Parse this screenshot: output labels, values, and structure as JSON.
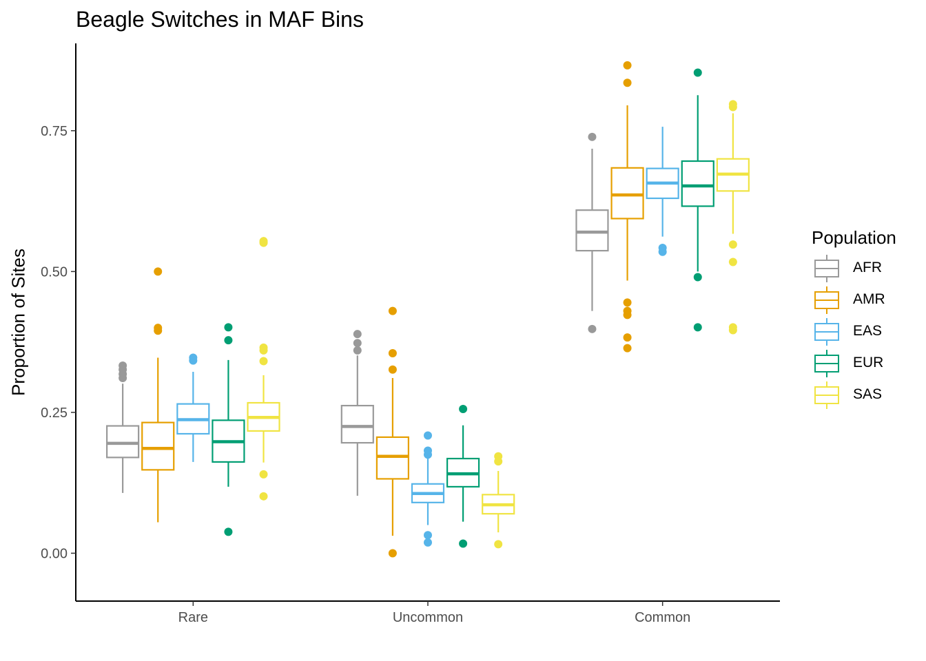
{
  "chart_data": {
    "type": "boxplot",
    "title": "Beagle Switches in MAF Bins",
    "xlabel": "",
    "ylabel": "Proportion of Sites",
    "ylim": [
      -0.085,
      0.905
    ],
    "yticks": [
      "0.00",
      "0.25",
      "0.50",
      "0.75"
    ],
    "ytick_values": [
      0,
      0.25,
      0.5,
      0.75
    ],
    "categories": [
      "Rare",
      "Uncommon",
      "Common"
    ],
    "legend_title": "Population",
    "legend_position": "right",
    "grid": false,
    "series": [
      {
        "name": "AFR",
        "color": "#999999",
        "boxes": [
          {
            "min": 0.107,
            "q1": 0.17,
            "median": 0.195,
            "q3": 0.226,
            "max": 0.301,
            "outliers": [
              0.311,
              0.318,
              0.326,
              0.333
            ]
          },
          {
            "min": 0.102,
            "q1": 0.196,
            "median": 0.225,
            "q3": 0.262,
            "max": 0.351,
            "outliers": [
              0.36,
              0.373,
              0.389
            ]
          },
          {
            "min": 0.43,
            "q1": 0.537,
            "median": 0.57,
            "q3": 0.609,
            "max": 0.718,
            "outliers": [
              0.398,
              0.739
            ]
          }
        ]
      },
      {
        "name": "AMR",
        "color": "#E69F00",
        "boxes": [
          {
            "min": 0.055,
            "q1": 0.148,
            "median": 0.186,
            "q3": 0.232,
            "max": 0.347,
            "outliers": [
              0.395,
              0.4,
              0.5
            ]
          },
          {
            "min": 0.031,
            "q1": 0.132,
            "median": 0.172,
            "q3": 0.206,
            "max": 0.311,
            "outliers": [
              0.0,
              0.326,
              0.355,
              0.43
            ]
          },
          {
            "min": 0.484,
            "q1": 0.594,
            "median": 0.636,
            "q3": 0.684,
            "max": 0.795,
            "outliers": [
              0.364,
              0.383,
              0.423,
              0.43,
              0.445,
              0.835,
              0.866
            ]
          }
        ]
      },
      {
        "name": "EAS",
        "color": "#56B4E9",
        "boxes": [
          {
            "min": 0.162,
            "q1": 0.212,
            "median": 0.237,
            "q3": 0.265,
            "max": 0.322,
            "outliers": [
              0.342,
              0.347
            ]
          },
          {
            "min": 0.05,
            "q1": 0.09,
            "median": 0.106,
            "q3": 0.123,
            "max": 0.169,
            "outliers": [
              0.019,
              0.032,
              0.175,
              0.182,
              0.209
            ]
          },
          {
            "min": 0.562,
            "q1": 0.63,
            "median": 0.657,
            "q3": 0.683,
            "max": 0.757,
            "outliers": [
              0.535,
              0.542
            ]
          }
        ]
      },
      {
        "name": "EUR",
        "color": "#009E73",
        "boxes": [
          {
            "min": 0.118,
            "q1": 0.162,
            "median": 0.198,
            "q3": 0.236,
            "max": 0.343,
            "outliers": [
              0.038,
              0.378,
              0.401
            ]
          },
          {
            "min": 0.056,
            "q1": 0.118,
            "median": 0.141,
            "q3": 0.168,
            "max": 0.227,
            "outliers": [
              0.017,
              0.256
            ]
          },
          {
            "min": 0.5,
            "q1": 0.616,
            "median": 0.652,
            "q3": 0.696,
            "max": 0.813,
            "outliers": [
              0.401,
              0.49,
              0.853
            ]
          }
        ]
      },
      {
        "name": "SAS",
        "color": "#F0E442",
        "boxes": [
          {
            "min": 0.161,
            "q1": 0.217,
            "median": 0.241,
            "q3": 0.267,
            "max": 0.316,
            "outliers": [
              0.101,
              0.14,
              0.341,
              0.36,
              0.365,
              0.551,
              0.554
            ]
          },
          {
            "min": 0.037,
            "q1": 0.07,
            "median": 0.086,
            "q3": 0.104,
            "max": 0.146,
            "outliers": [
              0.016,
              0.163,
              0.172
            ]
          },
          {
            "min": 0.567,
            "q1": 0.643,
            "median": 0.673,
            "q3": 0.7,
            "max": 0.781,
            "outliers": [
              0.396,
              0.401,
              0.517,
              0.548,
              0.792,
              0.797
            ]
          }
        ]
      }
    ]
  }
}
